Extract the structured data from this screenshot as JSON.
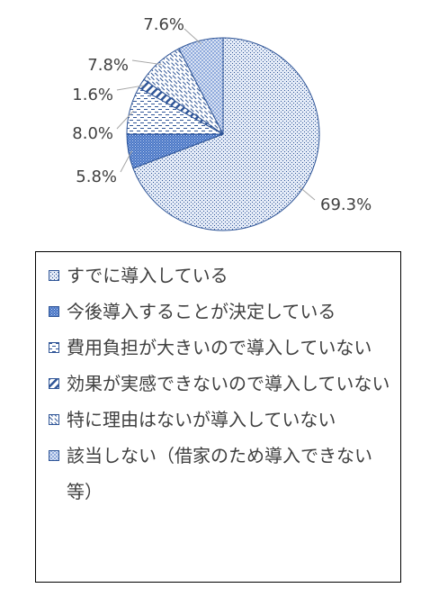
{
  "chart_data": {
    "type": "pie",
    "title": "",
    "start_angle_deg": 0,
    "direction": "clockwise",
    "legend_position": "bottom",
    "slices": [
      {
        "label": "すでに導入している",
        "value": 69.3,
        "value_label": "69.3%",
        "fill": "#c5d4ee",
        "pattern": "dots-fine"
      },
      {
        "label": "今後導入することが決定している",
        "value": 5.8,
        "value_label": "5.8%",
        "fill": "#4472c4",
        "pattern": "dots-dense"
      },
      {
        "label": "費用負担が大きいので導入していない",
        "value": 8.0,
        "value_label": "8.0%",
        "fill": "#ffffff",
        "pattern": "dashes"
      },
      {
        "label": "効果が実感できないので導入していない",
        "value": 1.6,
        "value_label": "1.6%",
        "fill": "#ffffff",
        "pattern": "diagonal-wide"
      },
      {
        "label": "特に理由はないが導入していない",
        "value": 7.8,
        "value_label": "7.8%",
        "fill": "#ffffff",
        "pattern": "diagonal-dashed"
      },
      {
        "label": "該当しない（借家のため導入できない等）",
        "value": 7.6,
        "value_label": "7.6%",
        "fill": "#b4c7e7",
        "pattern": "checker"
      }
    ]
  }
}
